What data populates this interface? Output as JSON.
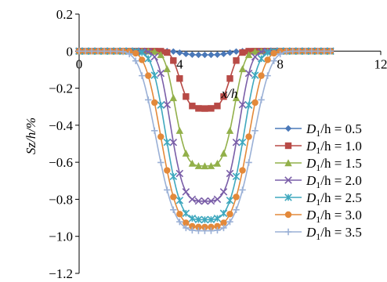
{
  "chart_data": {
    "type": "line",
    "xlabel": "x/h",
    "ylabel": "Sz/h/%",
    "xlim": [
      0,
      12
    ],
    "ylim": [
      -1.2,
      0.2
    ],
    "xticks": [
      0,
      4,
      8,
      12
    ],
    "yticks": [
      0.2,
      0,
      -0.2,
      -0.4,
      -0.6,
      -0.8,
      -1.0,
      -1.2
    ],
    "xtick_labels": [
      "0",
      "4",
      "8",
      "12"
    ],
    "ytick_labels": [
      "0.2",
      "0",
      "−0.2",
      "−0.4",
      "−0.6",
      "−0.8",
      "−1.0",
      "−1.2"
    ],
    "legend_position": "right",
    "grid": false,
    "series": [
      {
        "name": "D1/h = 0.5",
        "label_prefix": "D",
        "label_sub": "1",
        "label_suffix": "/h = 0.5",
        "color": "#4a78b8",
        "marker": "diamond",
        "center": 5.0,
        "depth": -0.02,
        "width": 1.0
      },
      {
        "name": "D1/h = 1.0",
        "label_prefix": "D",
        "label_sub": "1",
        "label_suffix": "/h = 1.0",
        "color": "#b84a46",
        "marker": "square",
        "center": 5.0,
        "depth": -0.31,
        "width": 1.05
      },
      {
        "name": "D1/h = 1.5",
        "label_prefix": "D",
        "label_sub": "1",
        "label_suffix": "/h = 1.5",
        "color": "#92b04a",
        "marker": "triangle",
        "center": 5.0,
        "depth": -0.62,
        "width": 1.25
      },
      {
        "name": "D1/h = 2.0",
        "label_prefix": "D",
        "label_sub": "1",
        "label_suffix": "/h = 2.0",
        "color": "#7a5ea8",
        "marker": "x",
        "center": 5.0,
        "depth": -0.81,
        "width": 1.45
      },
      {
        "name": "D1/h = 2.5",
        "label_prefix": "D",
        "label_sub": "1",
        "label_suffix": "/h = 2.5",
        "color": "#3fa8be",
        "marker": "star",
        "center": 5.0,
        "depth": -0.91,
        "width": 1.65
      },
      {
        "name": "D1/h = 3.0",
        "label_prefix": "D",
        "label_sub": "1",
        "label_suffix": "/h = 3.0",
        "color": "#e3893a",
        "marker": "circle",
        "center": 5.0,
        "depth": -0.95,
        "width": 1.85
      },
      {
        "name": "D1/h = 3.5",
        "label_prefix": "D",
        "label_sub": "1",
        "label_suffix": "/h = 3.5",
        "color": "#9ab0d6",
        "marker": "plus",
        "center": 5.0,
        "depth": -0.97,
        "width": 2.05
      }
    ]
  }
}
